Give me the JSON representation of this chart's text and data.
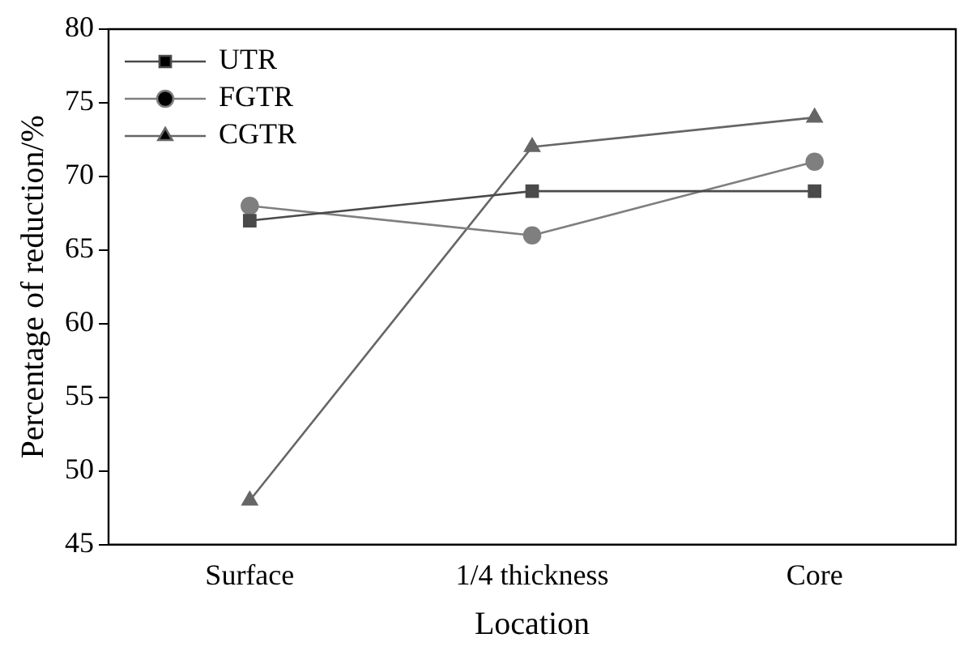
{
  "chart_data": {
    "type": "line",
    "xlabel": "Location",
    "ylabel": "Percentage of reduction/%",
    "categories": [
      "Surface",
      "1/4 thickness",
      "Core"
    ],
    "series": [
      {
        "name": "UTR",
        "color": "#4a4a4a",
        "marker": "square",
        "values": [
          67,
          69,
          69
        ]
      },
      {
        "name": "FGTR",
        "color": "#7f7f7f",
        "marker": "circle",
        "values": [
          68,
          66,
          71
        ]
      },
      {
        "name": "CGTR",
        "color": "#666666",
        "marker": "triangle",
        "values": [
          48,
          72,
          74
        ]
      }
    ],
    "ylim": [
      45,
      80
    ],
    "yticks": [
      45,
      50,
      55,
      60,
      65,
      70,
      75,
      80
    ],
    "grid": false,
    "legend": "top left",
    "line_style": "solid"
  }
}
